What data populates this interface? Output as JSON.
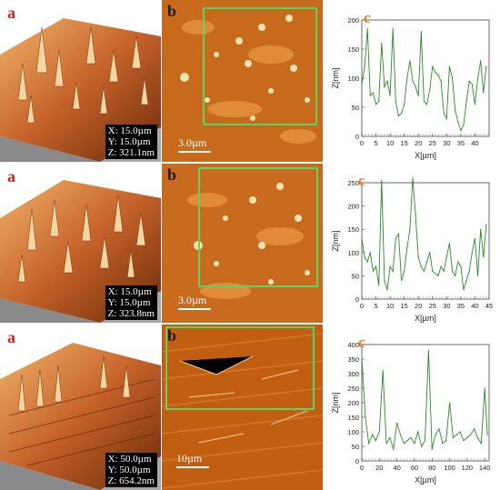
{
  "rows": [
    {
      "label_a": "a",
      "label_b": "b",
      "label_c": "c",
      "dims": {
        "x": "X: 15.0µm",
        "y": "Y: 15.0µm",
        "z": "Z: 321.1nm"
      },
      "scale": "3.0µm"
    },
    {
      "label_a": "a",
      "label_b": "b",
      "label_c": "c",
      "dims": {
        "x": "X: 15.0µm",
        "y": "Y: 15.0µm",
        "z": "Z: 323.8nm"
      },
      "scale": "3.0µm"
    },
    {
      "label_a": "a",
      "label_b": "b",
      "label_c": "c",
      "dims": {
        "x": "X: 50.0µm",
        "y": "Y: 50.0µm",
        "z": "Z: 654.2nm"
      },
      "scale": "10µm"
    }
  ],
  "colors": {
    "profile": "#2a8a2a",
    "roi": "#5fd35f",
    "label_a": "#d81e1e",
    "label_c": "#f07a28",
    "afm_dark": "#6b2a08",
    "afm_light": "#f2b36a"
  },
  "chart_data": [
    {
      "type": "line",
      "xlabel": "X[µm]",
      "ylabel": "Z[nm]",
      "xlim": [
        0,
        45
      ],
      "ylim": [
        0,
        200
      ],
      "xticks": [
        0,
        5,
        10,
        15,
        20,
        25,
        30,
        35,
        40
      ],
      "yticks": [
        0,
        50,
        100,
        150,
        200
      ],
      "x": [
        0,
        1,
        2,
        3,
        4,
        5,
        6,
        7,
        8,
        9,
        10,
        11,
        12,
        13,
        14,
        15,
        16,
        17,
        18,
        19,
        20,
        21,
        22,
        23,
        24,
        25,
        26,
        27,
        28,
        29,
        30,
        31,
        32,
        33,
        34,
        35,
        36,
        37,
        38,
        39,
        40,
        41,
        42,
        43,
        44
      ],
      "values": [
        90,
        120,
        185,
        70,
        75,
        55,
        60,
        160,
        85,
        95,
        70,
        185,
        60,
        35,
        40,
        55,
        100,
        130,
        95,
        85,
        70,
        180,
        60,
        55,
        80,
        120,
        110,
        105,
        95,
        40,
        30,
        120,
        100,
        45,
        25,
        10,
        20,
        60,
        95,
        90,
        55,
        100,
        130,
        75,
        120
      ]
    },
    {
      "type": "line",
      "xlabel": "X[µm]",
      "ylabel": "Z[nm]",
      "xlim": [
        0,
        45
      ],
      "ylim": [
        0,
        250
      ],
      "xticks": [
        0,
        5,
        10,
        15,
        20,
        25,
        30,
        35,
        40,
        45
      ],
      "yticks": [
        0,
        50,
        100,
        150,
        200,
        250
      ],
      "x": [
        0,
        1,
        2,
        3,
        4,
        5,
        6,
        7,
        8,
        9,
        10,
        11,
        12,
        13,
        14,
        15,
        16,
        17,
        18,
        19,
        20,
        21,
        22,
        23,
        24,
        25,
        26,
        27,
        28,
        29,
        30,
        31,
        32,
        33,
        34,
        35,
        36,
        37,
        38,
        39,
        40,
        41,
        42,
        43,
        44
      ],
      "values": [
        130,
        90,
        80,
        100,
        60,
        70,
        30,
        255,
        40,
        20,
        70,
        60,
        130,
        140,
        40,
        60,
        110,
        150,
        260,
        180,
        90,
        70,
        60,
        80,
        100,
        60,
        55,
        50,
        70,
        60,
        90,
        120,
        60,
        50,
        80,
        70,
        20,
        40,
        60,
        100,
        130,
        50,
        150,
        90,
        160
      ]
    },
    {
      "type": "line",
      "xlabel": "X[µm]",
      "ylabel": "Z[nm]",
      "xlim": [
        0,
        145
      ],
      "ylim": [
        0,
        400
      ],
      "xticks": [
        0,
        20,
        40,
        60,
        80,
        100,
        120,
        140
      ],
      "yticks": [
        0,
        50,
        100,
        150,
        200,
        250,
        300,
        350,
        400
      ],
      "x": [
        0,
        4,
        8,
        12,
        16,
        20,
        24,
        28,
        32,
        36,
        40,
        44,
        48,
        52,
        56,
        60,
        64,
        68,
        72,
        76,
        80,
        84,
        88,
        92,
        96,
        100,
        104,
        108,
        112,
        116,
        120,
        124,
        128,
        132,
        136,
        140,
        143
      ],
      "values": [
        350,
        150,
        60,
        90,
        70,
        100,
        310,
        60,
        80,
        40,
        130,
        90,
        60,
        70,
        80,
        60,
        100,
        50,
        70,
        380,
        40,
        90,
        110,
        60,
        70,
        200,
        80,
        90,
        100,
        70,
        80,
        90,
        110,
        80,
        60,
        250,
        90
      ]
    }
  ]
}
